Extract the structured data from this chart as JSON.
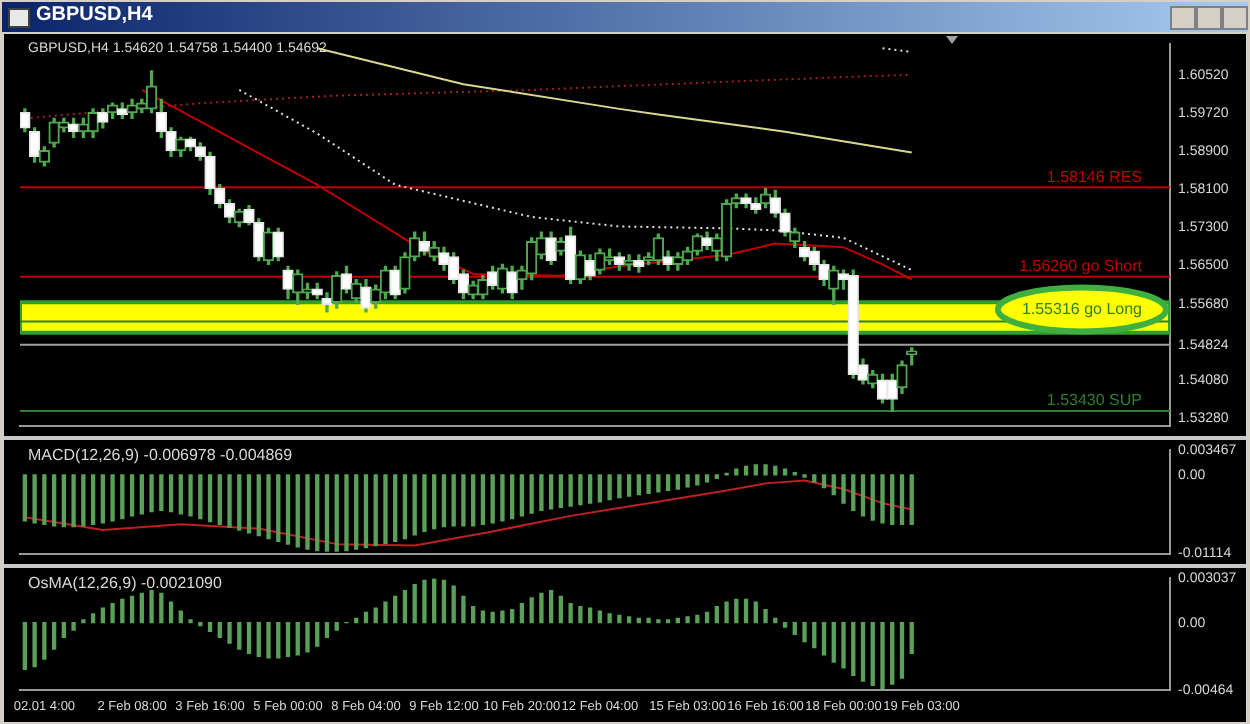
{
  "chart_data": [
    {
      "type": "candlestick",
      "title": "GBPUSD,H4",
      "subtitle": "GBPUSD,H4 1.54620 1.54758 1.54400 1.54692",
      "categories": [
        null,
        null,
        null,
        null,
        null,
        null,
        null,
        null,
        null,
        null,
        null,
        null,
        null,
        null,
        null,
        null,
        null,
        null,
        null,
        null,
        null,
        null,
        null,
        null,
        null,
        null,
        null,
        null,
        null,
        null,
        null,
        null,
        null,
        null,
        null,
        null,
        null,
        null,
        null,
        null,
        null,
        null,
        null,
        null,
        null,
        null,
        null,
        null,
        null,
        null,
        null,
        null,
        null,
        null,
        null,
        null,
        null,
        null,
        null,
        null,
        null,
        null,
        null,
        null,
        null,
        null,
        null,
        null,
        null,
        null,
        null,
        null,
        null,
        null,
        null,
        null,
        null,
        null,
        null,
        null,
        null,
        null,
        null,
        null,
        null,
        null,
        null,
        null,
        null,
        null,
        null,
        null,
        null,
        null,
        null,
        null,
        null,
        null,
        null,
        null,
        null,
        null,
        null,
        null,
        null,
        null,
        null,
        null,
        null,
        null,
        null,
        null,
        null,
        null,
        null,
        null,
        null,
        null
      ],
      "ohlc": [
        [
          1.5972,
          1.598,
          1.5932,
          1.594
        ],
        [
          1.5932,
          1.594,
          1.5868,
          1.588
        ],
        [
          1.5868,
          1.59,
          1.586,
          1.5892
        ],
        [
          1.5908,
          1.596,
          1.59,
          1.5952
        ],
        [
          1.594,
          1.596,
          1.5932,
          1.5952
        ],
        [
          1.5948,
          1.596,
          1.592,
          1.5932
        ],
        [
          1.5932,
          1.596,
          1.592,
          1.5948
        ],
        [
          1.5932,
          1.598,
          1.592,
          1.5972
        ],
        [
          1.5972,
          1.598,
          1.594,
          1.5952
        ],
        [
          1.5972,
          1.5992,
          1.596,
          1.5988
        ],
        [
          1.598,
          1.5992,
          1.596,
          1.5968
        ],
        [
          1.5972,
          1.6,
          1.596,
          1.5988
        ],
        [
          1.598,
          1.6,
          1.5972,
          1.5992
        ],
        [
          1.598,
          1.606,
          1.5972,
          1.6028
        ],
        [
          1.5972,
          1.6,
          1.592,
          1.5932
        ],
        [
          1.5932,
          1.594,
          1.588,
          1.5892
        ],
        [
          1.5892,
          1.592,
          1.588,
          1.5916
        ],
        [
          1.5916,
          1.592,
          1.5892,
          1.59
        ],
        [
          1.59,
          1.5908,
          1.5872,
          1.588
        ],
        [
          1.588,
          1.5888,
          1.58,
          1.5812
        ],
        [
          1.5812,
          1.582,
          1.5772,
          1.578
        ],
        [
          1.578,
          1.5788,
          1.574,
          1.5752
        ],
        [
          1.574,
          1.5768,
          1.5732,
          1.5764
        ],
        [
          1.5768,
          1.5776,
          1.5736,
          1.574
        ],
        [
          1.574,
          1.5748,
          1.566,
          1.5668
        ],
        [
          1.566,
          1.5728,
          1.5652,
          1.572
        ],
        [
          1.572,
          1.5728,
          1.566,
          1.5668
        ],
        [
          1.564,
          1.5648,
          1.558,
          1.56
        ],
        [
          1.5592,
          1.564,
          1.5568,
          1.5632
        ],
        [
          1.5592,
          1.5612,
          1.558,
          1.56
        ],
        [
          1.56,
          1.5612,
          1.558,
          1.5588
        ],
        [
          1.558,
          1.5592,
          1.5552,
          1.5568
        ],
        [
          1.5572,
          1.5636,
          1.556,
          1.5628
        ],
        [
          1.5632,
          1.5648,
          1.5592,
          1.56
        ],
        [
          1.558,
          1.562,
          1.5572,
          1.5612
        ],
        [
          1.5604,
          1.562,
          1.5552,
          1.556
        ],
        [
          1.5572,
          1.5608,
          1.556,
          1.56
        ],
        [
          1.5592,
          1.5648,
          1.558,
          1.564
        ],
        [
          1.564,
          1.5648,
          1.558,
          1.5588
        ],
        [
          1.56,
          1.5676,
          1.5592,
          1.5668
        ],
        [
          1.5668,
          1.572,
          1.566,
          1.5708
        ],
        [
          1.57,
          1.572,
          1.5672,
          1.568
        ],
        [
          1.5668,
          1.57,
          1.566,
          1.5688
        ],
        [
          1.5676,
          1.5688,
          1.564,
          1.5652
        ],
        [
          1.5668,
          1.5676,
          1.5612,
          1.562
        ],
        [
          1.5632,
          1.564,
          1.558,
          1.5592
        ],
        [
          1.5588,
          1.5616,
          1.558,
          1.5608
        ],
        [
          1.5588,
          1.5628,
          1.558,
          1.562
        ],
        [
          1.5636,
          1.5648,
          1.56,
          1.5608
        ],
        [
          1.56,
          1.5652,
          1.5592,
          1.5644
        ],
        [
          1.5636,
          1.5648,
          1.558,
          1.5592
        ],
        [
          1.562,
          1.5648,
          1.56,
          1.564
        ],
        [
          1.5632,
          1.5708,
          1.562,
          1.57
        ],
        [
          1.5672,
          1.572,
          1.5664,
          1.5708
        ],
        [
          1.5708,
          1.572,
          1.5652,
          1.566
        ],
        [
          1.568,
          1.5708,
          1.5672,
          1.57
        ],
        [
          1.5712,
          1.573,
          1.5612,
          1.562
        ],
        [
          1.562,
          1.568,
          1.5612,
          1.5672
        ],
        [
          1.566,
          1.5672,
          1.562,
          1.5628
        ],
        [
          1.564,
          1.5684,
          1.5632,
          1.5676
        ],
        [
          1.566,
          1.5684,
          1.5652,
          1.5668
        ],
        [
          1.5668,
          1.5676,
          1.564,
          1.5652
        ],
        [
          1.5652,
          1.5672,
          1.564,
          1.566
        ],
        [
          1.566,
          1.5672,
          1.5636,
          1.5648
        ],
        [
          1.566,
          1.5676,
          1.5652,
          1.5668
        ],
        [
          1.566,
          1.5716,
          1.5652,
          1.5708
        ],
        [
          1.5668,
          1.568,
          1.564,
          1.5652
        ],
        [
          1.5652,
          1.5676,
          1.564,
          1.5668
        ],
        [
          1.566,
          1.5688,
          1.5652,
          1.568
        ],
        [
          1.568,
          1.5716,
          1.5672,
          1.5712
        ],
        [
          1.5708,
          1.572,
          1.5684,
          1.5692
        ],
        [
          1.568,
          1.5716,
          1.566,
          1.5708
        ],
        [
          1.5668,
          1.5788,
          1.566,
          1.578
        ],
        [
          1.578,
          1.58,
          1.5772,
          1.5792
        ],
        [
          1.5792,
          1.58,
          1.5772,
          1.578
        ],
        [
          1.578,
          1.5792,
          1.576,
          1.5768
        ],
        [
          1.578,
          1.5812,
          1.5772,
          1.58
        ],
        [
          1.5792,
          1.5808,
          1.5752,
          1.576
        ],
        [
          1.576,
          1.5768,
          1.5712,
          1.572
        ],
        [
          1.57,
          1.5728,
          1.5688,
          1.572
        ],
        [
          1.5688,
          1.57,
          1.566,
          1.5668
        ],
        [
          1.568,
          1.5688,
          1.564,
          1.5652
        ],
        [
          1.5652,
          1.566,
          1.5608,
          1.562
        ],
        [
          1.56,
          1.5648,
          1.5568,
          1.564
        ],
        [
          1.5632,
          1.564,
          1.56,
          1.562
        ],
        [
          1.5628,
          1.564,
          1.5412,
          1.542
        ],
        [
          1.544,
          1.5452,
          1.54,
          1.5408
        ],
        [
          1.54,
          1.5428,
          1.5392,
          1.542
        ],
        [
          1.5408,
          1.542,
          1.536,
          1.5368
        ],
        [
          1.5408,
          1.542,
          1.5343,
          1.5368
        ],
        [
          1.5392,
          1.5448,
          1.538,
          1.544
        ],
        [
          1.5462,
          1.54758,
          1.544,
          1.54692
        ],
        null,
        null,
        null,
        null,
        null,
        null,
        null,
        null,
        null,
        null,
        null,
        null,
        null,
        null,
        null,
        null,
        null,
        null,
        null,
        null,
        null,
        null,
        null,
        null,
        null,
        null
      ],
      "series": [
        {
          "type": "line",
          "color": "#c00000",
          "values": [
            null,
            null,
            null,
            null,
            null,
            null,
            null,
            null,
            null,
            null,
            null,
            null,
            1.602,
            null,
            null,
            null,
            null,
            null,
            null,
            null,
            null,
            null,
            null,
            null,
            null,
            null,
            null,
            null,
            null,
            null,
            1.582,
            null,
            null,
            null,
            null,
            null,
            null,
            null,
            null,
            null,
            null,
            1.568,
            null,
            null,
            null,
            null,
            1.5632,
            null,
            null,
            null,
            null,
            null,
            null,
            null,
            null,
            1.5628,
            null,
            null,
            null,
            null,
            null,
            1.5648,
            null,
            null,
            null,
            null,
            null,
            null,
            null,
            null,
            null,
            null,
            1.5672,
            null,
            null,
            null,
            null,
            1.5696,
            null,
            null,
            null,
            null,
            null,
            null,
            1.5688,
            null,
            null,
            null,
            1.5652,
            null,
            null,
            1.562,
            null,
            null,
            null,
            null,
            null,
            null,
            null,
            null,
            null,
            null,
            null,
            null,
            null,
            null,
            null,
            null,
            null,
            null,
            null,
            null,
            null,
            null,
            null,
            null,
            null,
            null
          ]
        },
        {
          "type": "line",
          "color": "#e0e0e0",
          "line_style": "dotted",
          "values": [
            null,
            null,
            null,
            null,
            null,
            null,
            null,
            null,
            null,
            null,
            null,
            null,
            null,
            null,
            null,
            null,
            null,
            null,
            null,
            null,
            null,
            null,
            1.602,
            null,
            null,
            null,
            null,
            null,
            null,
            null,
            1.5928,
            null,
            null,
            null,
            null,
            null,
            null,
            null,
            1.582,
            null,
            null,
            null,
            null,
            null,
            null,
            null,
            null,
            null,
            null,
            null,
            null,
            null,
            1.5752,
            null,
            null,
            null,
            null,
            null,
            null,
            null,
            null,
            1.5732,
            null,
            null,
            null,
            null,
            null,
            null,
            null,
            null,
            null,
            null,
            1.5728,
            null,
            null,
            null,
            null,
            1.5724,
            null,
            null,
            null,
            null,
            null,
            null,
            1.5708,
            null,
            null,
            null,
            null,
            null,
            null,
            1.564,
            null,
            null,
            null,
            null,
            null,
            null,
            null,
            null,
            null,
            null,
            null,
            null,
            null,
            null,
            null,
            null,
            null,
            null,
            null,
            null,
            null,
            null,
            null,
            null,
            null,
            null
          ]
        },
        {
          "type": "line",
          "color": "#d8d890",
          "values": [
            null,
            null,
            null,
            null,
            null,
            null,
            null,
            null,
            null,
            null,
            null,
            null,
            null,
            null,
            null,
            null,
            null,
            null,
            null,
            null,
            null,
            null,
            null,
            null,
            null,
            null,
            null,
            null,
            null,
            null,
            1.6108,
            null,
            null,
            null,
            null,
            null,
            null,
            null,
            null,
            null,
            null,
            null,
            null,
            null,
            null,
            1.6032,
            null,
            null,
            null,
            null,
            null,
            null,
            null,
            null,
            null,
            null,
            null,
            null,
            null,
            null,
            null,
            1.598,
            null,
            null,
            null,
            1.5968,
            null,
            null,
            null,
            null,
            null,
            null,
            null,
            null,
            null,
            null,
            null,
            null,
            1.5932,
            null,
            null,
            null,
            null,
            null,
            null,
            null,
            null,
            null,
            null,
            null,
            null,
            1.5888,
            null,
            null,
            null,
            null,
            null,
            null,
            null,
            null,
            null,
            null,
            null,
            null,
            null,
            null,
            null,
            null,
            null,
            null,
            null,
            null,
            null,
            null,
            null,
            null,
            null,
            null
          ]
        },
        {
          "type": "line",
          "color": "#a02020",
          "line_style": "dotted",
          "values": [
            1.596,
            null,
            null,
            null,
            null,
            null,
            null,
            null,
            null,
            null,
            null,
            null,
            null,
            null,
            null,
            null,
            null,
            null,
            1.5992,
            null,
            null,
            null,
            null,
            null,
            null,
            null,
            null,
            null,
            null,
            null,
            null,
            null,
            1.6008,
            null,
            null,
            null,
            null,
            null,
            null,
            null,
            null,
            null,
            null,
            null,
            null,
            null,
            null,
            null,
            null,
            null,
            null,
            null,
            1.602,
            null,
            null,
            null,
            null,
            null,
            null,
            null,
            null,
            1.6028,
            null,
            null,
            null,
            null,
            null,
            null,
            null,
            null,
            null,
            null,
            null,
            null,
            null,
            null,
            null,
            null,
            null,
            null,
            null,
            null,
            null,
            null,
            null,
            1.6048,
            null,
            null,
            null,
            null,
            null,
            1.6052,
            null,
            null,
            null,
            null,
            null,
            null,
            null,
            null,
            null,
            null,
            null,
            null,
            null,
            null,
            null,
            null,
            null,
            null,
            null,
            null,
            null,
            null,
            null,
            null,
            null,
            null
          ]
        },
        {
          "type": "line",
          "color": "#e0e0e0",
          "line_style": "dotted",
          "values": [
            null,
            null,
            null,
            null,
            null,
            null,
            null,
            null,
            null,
            null,
            null,
            null,
            null,
            null,
            null,
            null,
            null,
            null,
            null,
            null,
            null,
            null,
            null,
            null,
            null,
            null,
            null,
            null,
            null,
            null,
            null,
            null,
            null,
            null,
            null,
            null,
            null,
            null,
            null,
            null,
            null,
            null,
            null,
            null,
            null,
            null,
            null,
            null,
            null,
            null,
            null,
            null,
            null,
            null,
            null,
            null,
            null,
            null,
            null,
            null,
            null,
            null,
            null,
            null,
            null,
            null,
            null,
            null,
            null,
            null,
            null,
            null,
            null,
            null,
            null,
            null,
            null,
            null,
            null,
            null,
            null,
            null,
            null,
            null,
            null,
            null,
            null,
            null,
            1.6108,
            null,
            null,
            1.61,
            null,
            null,
            null,
            null,
            null,
            null,
            null,
            null,
            null,
            null,
            null,
            null,
            null,
            null,
            null,
            null,
            null,
            null,
            null,
            null,
            null,
            null,
            null,
            null,
            null,
            null
          ]
        }
      ],
      "ylim": [
        1.5312,
        1.6116
      ],
      "yticks": [
        {
          "value": 1.6052,
          "label": "1.60520"
        },
        {
          "value": 1.5972,
          "label": "1.59720"
        },
        {
          "value": 1.589,
          "label": "1.58900"
        },
        {
          "value": 1.581,
          "label": "1.58100"
        },
        {
          "value": 1.573,
          "label": "1.57300"
        },
        {
          "value": 1.565,
          "label": "1.56500"
        },
        {
          "value": 1.5568,
          "label": "1.55680"
        },
        1.54824,
        {
          "value": 1.5408,
          "label": "1.54080"
        },
        {
          "value": 1.5328,
          "label": "1.53280"
        }
      ],
      "tick_labels": "y",
      "ref_lines": [
        {
          "axis": "y",
          "value": 1.58146,
          "label": "1.58146 RES",
          "color": "#c00000"
        },
        {
          "axis": "y",
          "value": 1.5626,
          "label": "1.56260 go Short",
          "color": "#c00000"
        },
        {
          "axis": "y",
          "value": 1.55316,
          "label": "1.55316 go Long",
          "color": "#2f7f2f"
        },
        {
          "axis": "y",
          "value": 1.5343,
          "label": "1.53430 SUP",
          "color": "#2f7f2f"
        },
        {
          "axis": "y",
          "value": 1.54824,
          "color": "#a0a0a0"
        }
      ],
      "bands": [
        {
          "axis": "y",
          "from": 1.5508,
          "to": 1.5572,
          "color": "#ffff00"
        }
      ]
    },
    {
      "type": "bar",
      "title": "MACD(12,26,9) -0.006978 -0.004869",
      "categories": [
        null,
        null,
        null,
        null,
        null,
        null,
        null,
        null,
        null,
        null,
        null,
        null,
        null,
        null,
        null,
        null,
        null,
        null,
        null,
        null,
        null,
        null,
        null,
        null,
        null,
        null,
        null,
        null,
        null,
        null,
        null,
        null,
        null,
        null,
        null,
        null,
        null,
        null,
        null,
        null,
        null,
        null,
        null,
        null,
        null,
        null,
        null,
        null,
        null,
        null,
        null,
        null,
        null,
        null,
        null,
        null,
        null,
        null,
        null,
        null,
        null,
        null,
        null,
        null,
        null,
        null,
        null,
        null,
        null,
        null,
        null,
        null,
        null,
        null,
        null,
        null,
        null,
        null,
        null,
        null,
        null,
        null,
        null,
        null,
        null,
        null,
        null,
        null,
        null,
        null,
        null,
        null,
        null,
        null,
        null,
        null,
        null,
        null,
        null,
        null,
        null,
        null,
        null,
        null,
        null,
        null,
        null,
        null,
        null,
        null,
        null,
        null,
        null,
        null,
        null,
        null,
        null,
        null
      ],
      "series": [
        {
          "type": "bar",
          "color": "#5aa05a",
          "values": [
            -0.0065,
            -0.0068,
            -0.007,
            -0.0072,
            -0.0073,
            -0.0073,
            -0.0072,
            -0.007,
            -0.0068,
            -0.0065,
            -0.0062,
            -0.0058,
            -0.0055,
            -0.0052,
            -0.005,
            -0.0052,
            -0.0055,
            -0.0058,
            -0.0062,
            -0.0066,
            -0.007,
            -0.0074,
            -0.0078,
            -0.0082,
            -0.0086,
            -0.009,
            -0.0094,
            -0.0098,
            -0.0102,
            -0.0105,
            -0.0107,
            -0.0108,
            -0.0108,
            -0.0107,
            -0.0105,
            -0.0103,
            -0.01,
            -0.0097,
            -0.0094,
            -0.009,
            -0.0085,
            -0.008,
            -0.0076,
            -0.0073,
            -0.0072,
            -0.0072,
            -0.0072,
            -0.007,
            -0.0068,
            -0.0065,
            -0.0062,
            -0.0058,
            -0.0054,
            -0.005,
            -0.0048,
            -0.0046,
            -0.0044,
            -0.0042,
            -0.004,
            -0.0038,
            -0.0035,
            -0.0032,
            -0.003,
            -0.0028,
            -0.0026,
            -0.0024,
            -0.0022,
            -0.002,
            -0.0017,
            -0.0014,
            -0.001,
            -0.0005,
            0.0002,
            0.0008,
            0.0012,
            0.0014,
            0.0014,
            0.0012,
            0.0008,
            0.0003,
            -0.0003,
            -0.001,
            -0.0018,
            -0.0028,
            -0.004,
            -0.005,
            -0.0058,
            -0.0064,
            -0.0068,
            -0.007,
            -0.007,
            -0.007,
            null,
            null,
            null,
            null,
            null,
            null,
            null,
            null,
            null,
            null,
            null,
            null,
            null,
            null,
            null,
            null,
            null,
            null,
            null,
            null,
            null,
            null,
            null,
            null,
            null,
            null
          ]
        },
        {
          "type": "line",
          "color": "#c02020",
          "values": [
            -0.006,
            null,
            null,
            null,
            null,
            null,
            null,
            null,
            -0.0078,
            null,
            null,
            null,
            null,
            null,
            null,
            null,
            -0.007,
            null,
            null,
            null,
            null,
            null,
            null,
            null,
            -0.0076,
            null,
            null,
            null,
            null,
            null,
            null,
            null,
            -0.0098,
            null,
            null,
            null,
            null,
            null,
            null,
            null,
            -0.01,
            null,
            null,
            null,
            null,
            null,
            null,
            null,
            -0.008,
            null,
            null,
            null,
            null,
            null,
            null,
            null,
            -0.0058,
            null,
            null,
            null,
            null,
            null,
            null,
            null,
            -0.004,
            null,
            null,
            null,
            null,
            null,
            null,
            null,
            -0.0022,
            null,
            null,
            null,
            -0.0012,
            null,
            null,
            null,
            -0.0008,
            null,
            null,
            null,
            -0.002,
            null,
            null,
            null,
            -0.004,
            null,
            null,
            -0.0049,
            null,
            null,
            null,
            null,
            null,
            null,
            null,
            null,
            null,
            null,
            null,
            null,
            null,
            null,
            null,
            null,
            null,
            null,
            null,
            null,
            null,
            null,
            null,
            null,
            null,
            null
          ]
        }
      ],
      "ylim": [
        -0.01114,
        0.003467
      ],
      "yticks": [
        0.003467,
        {
          "value": 0,
          "label": "0.00"
        },
        -0.01114
      ],
      "tick_labels": "y"
    },
    {
      "type": "bar",
      "title": "OsMA(12,26,9) -0.0021090",
      "categories": [
        null,
        null,
        "02.01 4:00",
        null,
        null,
        null,
        null,
        null,
        null,
        null,
        null,
        "2 Feb 08:00",
        null,
        null,
        null,
        null,
        null,
        null,
        null,
        "3 Feb 16:00",
        null,
        null,
        null,
        null,
        null,
        null,
        null,
        "5 Feb 00:00",
        null,
        null,
        null,
        null,
        null,
        null,
        null,
        "8 Feb 04:00",
        null,
        null,
        null,
        null,
        null,
        null,
        null,
        "9 Feb 12:00",
        null,
        null,
        null,
        null,
        null,
        null,
        null,
        "10 Feb 20:00",
        null,
        null,
        null,
        null,
        null,
        null,
        null,
        "12 Feb 04:00",
        null,
        null,
        null,
        null,
        null,
        null,
        null,
        null,
        "15 Feb 03:00",
        null,
        null,
        null,
        null,
        null,
        null,
        null,
        "16 Feb 16:00",
        null,
        null,
        null,
        null,
        null,
        null,
        null,
        "18 Feb 00:00",
        null,
        null,
        null,
        null,
        null,
        null,
        null,
        "19 Feb 03:00",
        null,
        null,
        null,
        null,
        null,
        null,
        null,
        null,
        null,
        null,
        null,
        null,
        null,
        null,
        null,
        null,
        null,
        null,
        null,
        null,
        null,
        null,
        null,
        null,
        null
      ],
      "values": [
        -0.0032,
        -0.003,
        -0.0025,
        -0.0018,
        -0.001,
        -0.0005,
        0.0002,
        0.0006,
        0.001,
        0.0013,
        0.0016,
        0.0018,
        0.002,
        0.0022,
        0.002,
        0.0014,
        0.0008,
        0.0002,
        -0.0002,
        -0.0006,
        -0.001,
        -0.0014,
        -0.0018,
        -0.0021,
        -0.0023,
        -0.0024,
        -0.0024,
        -0.0023,
        -0.0022,
        -0.002,
        -0.0016,
        -0.001,
        -0.0005,
        0,
        0.0003,
        0.0007,
        0.001,
        0.0014,
        0.0018,
        0.0022,
        0.0026,
        0.0029,
        0.003,
        0.0029,
        0.0025,
        0.0018,
        0.0011,
        0.0008,
        0.0007,
        0.0008,
        0.0009,
        0.0013,
        0.0017,
        0.002,
        0.0022,
        0.0018,
        0.0013,
        0.0011,
        0.001,
        0.0008,
        0.0006,
        0.0005,
        0.0004,
        0.0003,
        0.0003,
        0.0002,
        0.0002,
        0.0003,
        0.0004,
        0.0005,
        0.0007,
        0.0011,
        0.0014,
        0.0016,
        0.0016,
        0.0014,
        0.0009,
        0.0003,
        -0.0003,
        -0.0008,
        -0.0013,
        -0.0017,
        -0.0022,
        -0.0027,
        -0.0031,
        -0.0036,
        -0.004,
        -0.0043,
        -0.0045,
        -0.0042,
        -0.0038,
        -0.0021,
        null,
        null,
        null,
        null,
        null,
        null,
        null,
        null,
        null,
        null,
        null,
        null,
        null,
        null,
        null,
        null,
        null,
        null,
        null,
        null,
        null,
        null,
        null,
        null,
        null,
        null
      ],
      "color": "#5aa05a",
      "ylim": [
        -0.00464,
        0.003037
      ],
      "yticks": [
        0.003037,
        {
          "value": 0,
          "label": "0.00"
        },
        -0.00464
      ]
    }
  ]
}
